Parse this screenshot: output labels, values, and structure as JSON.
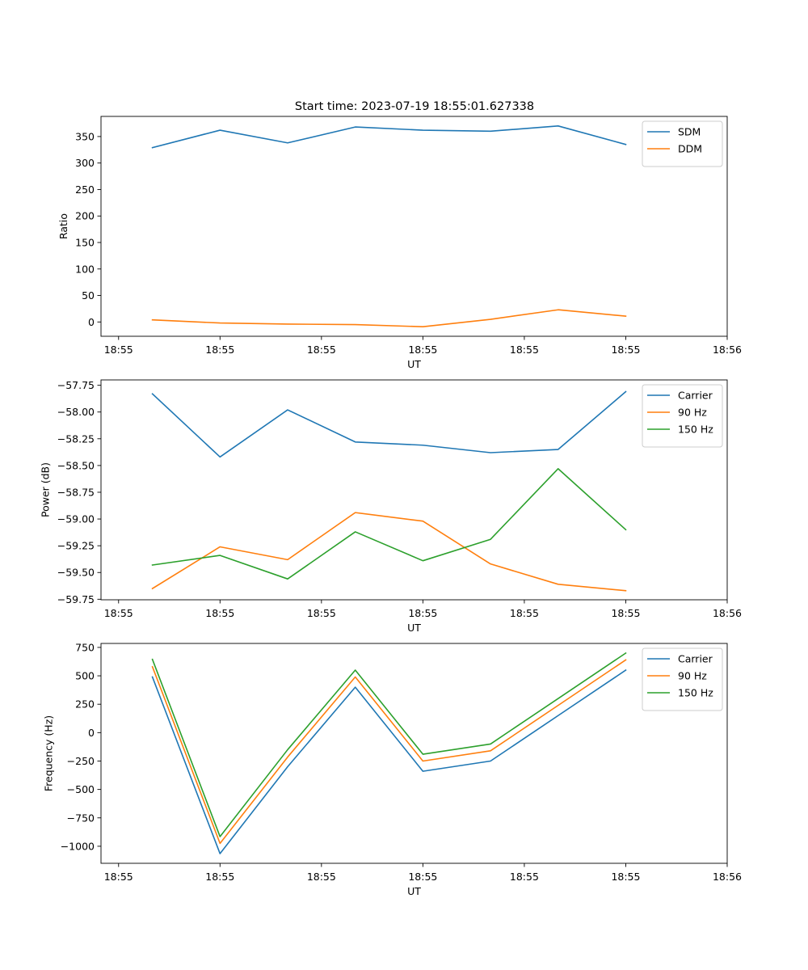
{
  "figure": {
    "title": "Start time: 2023-07-19 18:55:01.627338"
  },
  "colors": {
    "blue": "#1f77b4",
    "orange": "#ff7f0e",
    "green": "#2ca02c"
  },
  "chart_data": [
    {
      "type": "line",
      "title": "Start time: 2023-07-19 18:55:01.627338",
      "xlabel": "UT",
      "ylabel": "Ratio",
      "x": [
        1,
        2,
        3,
        4,
        5,
        6,
        7,
        8
      ],
      "xlim": [
        0.24,
        9.5
      ],
      "xticks": [
        0.5,
        2,
        3.5,
        5,
        6.5,
        8,
        9.5
      ],
      "xtick_labels": [
        "18:55",
        "18:55",
        "18:55",
        "18:55",
        "18:55",
        "18:55",
        "18:56"
      ],
      "ylim": [
        -27,
        388
      ],
      "yticks": [
        0,
        50,
        100,
        150,
        200,
        250,
        300,
        350
      ],
      "ytick_labels": [
        "0",
        "50",
        "100",
        "150",
        "200",
        "250",
        "300",
        "350"
      ],
      "legend": "top-right",
      "series": [
        {
          "name": "SDM",
          "color": "blue",
          "values": [
            329,
            362,
            338,
            368,
            362,
            360,
            370,
            335
          ]
        },
        {
          "name": "DDM",
          "color": "orange",
          "values": [
            4,
            -2,
            -4,
            -5,
            -9,
            5,
            23,
            11
          ]
        }
      ]
    },
    {
      "type": "line",
      "xlabel": "UT",
      "ylabel": "Power (dB)",
      "x": [
        1,
        2,
        3,
        4,
        5,
        6,
        7,
        8
      ],
      "xlim": [
        0.24,
        9.5
      ],
      "xticks": [
        0.5,
        2,
        3.5,
        5,
        6.5,
        8,
        9.5
      ],
      "xtick_labels": [
        "18:55",
        "18:55",
        "18:55",
        "18:55",
        "18:55",
        "18:55",
        "18:56"
      ],
      "ylim": [
        -59.755,
        -57.7
      ],
      "yticks": [
        -59.75,
        -59.5,
        -59.25,
        -59.0,
        -58.75,
        -58.5,
        -58.25,
        -58.0,
        -57.75
      ],
      "ytick_labels": [
        "−59.75",
        "−59.50",
        "−59.25",
        "−59.00",
        "−58.75",
        "−58.50",
        "−58.25",
        "−58.00",
        "−57.75"
      ],
      "legend": "top-right",
      "series": [
        {
          "name": "Carrier",
          "color": "blue",
          "values": [
            -57.83,
            -58.42,
            -57.98,
            -58.28,
            -58.31,
            -58.38,
            -58.35,
            -57.81
          ]
        },
        {
          "name": "90 Hz",
          "color": "orange",
          "values": [
            -59.65,
            -59.26,
            -59.38,
            -58.94,
            -59.02,
            -59.42,
            -59.61,
            -59.67
          ]
        },
        {
          "name": "150 Hz",
          "color": "green",
          "values": [
            -59.43,
            -59.34,
            -59.56,
            -59.12,
            -59.39,
            -59.19,
            -58.53,
            -59.1
          ]
        }
      ]
    },
    {
      "type": "line",
      "xlabel": "UT",
      "ylabel": "Frequency (Hz)",
      "x": [
        1,
        2,
        3,
        4,
        5,
        6,
        7,
        8
      ],
      "xlim": [
        0.24,
        9.5
      ],
      "xticks": [
        0.5,
        2,
        3.5,
        5,
        6.5,
        8,
        9.5
      ],
      "xtick_labels": [
        "18:55",
        "18:55",
        "18:55",
        "18:55",
        "18:55",
        "18:55",
        "18:56"
      ],
      "ylim": [
        -1150,
        785
      ],
      "yticks": [
        -1000,
        -750,
        -500,
        -250,
        0,
        250,
        500,
        750
      ],
      "ytick_labels": [
        "−1000",
        "−750",
        "−500",
        "−250",
        "0",
        "250",
        "500",
        "750"
      ],
      "legend": "top-right",
      "series": [
        {
          "name": "Carrier",
          "color": "blue",
          "values": [
            490,
            -1065,
            -300,
            400,
            -340,
            -250,
            150,
            550
          ]
        },
        {
          "name": "90 Hz",
          "color": "orange",
          "values": [
            580,
            -975,
            -215,
            490,
            -250,
            -160,
            240,
            640
          ]
        },
        {
          "name": "150 Hz",
          "color": "green",
          "values": [
            645,
            -915,
            -150,
            550,
            -190,
            -100,
            300,
            700
          ]
        }
      ]
    }
  ]
}
